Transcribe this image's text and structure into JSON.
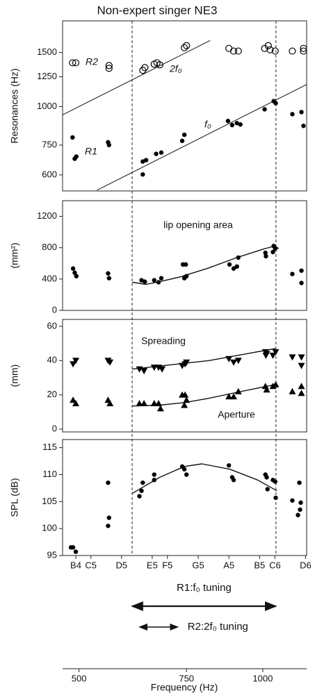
{
  "title": "Non-expert singer NE3",
  "xscale": "log",
  "xlim": [
    470,
    1180
  ],
  "xticks": [
    500,
    750,
    1000
  ],
  "xlabel": "Frequency (Hz)",
  "note_ticks": [
    {
      "value": 494,
      "label": "B4"
    },
    {
      "value": 523,
      "label": "C5"
    },
    {
      "value": 587,
      "label": "D5"
    },
    {
      "value": 659,
      "label": "E5"
    },
    {
      "value": 698,
      "label": "F5"
    },
    {
      "value": 784,
      "label": "G5"
    },
    {
      "value": 880,
      "label": "A5"
    },
    {
      "value": 988,
      "label": "B5"
    },
    {
      "value": 1047,
      "label": "C6"
    },
    {
      "value": 1175,
      "label": "D6"
    }
  ],
  "tuning_ranges": [
    {
      "label": "R1:f₀ tuning",
      "x": [
        611,
        1051
      ]
    },
    {
      "label": "R2:2f₀ tuning",
      "x": [
        628,
        726
      ]
    }
  ],
  "chart_data": [
    {
      "type": "scatter",
      "ylabel": "Resonances (Hz)",
      "yscale": "log",
      "ylim": [
        532,
        1900
      ],
      "yticks": [
        600,
        750,
        1000,
        1250,
        1500
      ],
      "annotations": [
        "R2",
        "2f₀",
        "f₀",
        "R1"
      ],
      "reference_lines": [
        {
          "x": [
            470,
            820
          ],
          "y": [
            940,
            1640
          ]
        },
        {
          "x": [
            535,
            1180
          ],
          "y": [
            535,
            1180
          ]
        }
      ],
      "series": [
        {
          "marker": "open-circle",
          "color": "#000000",
          "x": [
            488,
            494,
            560,
            560,
            636,
            641,
            664,
            671,
            678,
            744,
            750,
            880,
            896,
            912,
            1007,
            1021,
            1028,
            1048,
            1118,
            1166,
            1166
          ],
          "y": [
            1388,
            1388,
            1360,
            1332,
            1312,
            1339,
            1374,
            1388,
            1367,
            1554,
            1578,
            1546,
            1515,
            1515,
            1546,
            1578,
            1530,
            1515,
            1515,
            1515,
            1546
          ]
        },
        {
          "marker": "circle",
          "color": "#000000",
          "x": [
            488,
            492,
            495,
            558,
            560,
            636,
            644,
            636,
            669,
            682,
            738,
            744,
            877,
            891,
            907,
            919,
            1007,
            1042,
            1050,
            1118,
            1157,
            1166
          ],
          "y": [
            794,
            677,
            688,
            766,
            750,
            663,
            670,
            602,
            702,
            709,
            774,
            810,
            898,
            871,
            884,
            875,
            980,
            1042,
            1026,
            945,
            960,
            866
          ]
        }
      ]
    },
    {
      "type": "scatter",
      "ylabel": "(mm²)",
      "yscale": "linear",
      "ylim": [
        0,
        1400
      ],
      "yticks": [
        0,
        400,
        800,
        1200
      ],
      "annotations": [
        "lip opening area"
      ],
      "fits": [
        {
          "x": [
            611,
            644,
            678,
            734,
            816,
            907,
            1007,
            1048,
            1062
          ],
          "y": [
            359,
            332,
            367,
            429,
            542,
            674,
            787,
            822,
            787
          ]
        }
      ],
      "series": [
        {
          "marker": "circle",
          "color": "#000000",
          "x": [
            489,
            492,
            495,
            558,
            560,
            633,
            641,
            664,
            675,
            682,
            740,
            748,
            750,
            744,
            882,
            896,
            907,
            912,
            1010,
            1012,
            1042,
            1048,
            1039,
            1118,
            1157,
            1157
          ],
          "y": [
            534,
            481,
            437,
            472,
            411,
            385,
            367,
            385,
            359,
            411,
            586,
            586,
            437,
            411,
            586,
            534,
            560,
            674,
            735,
            691,
            822,
            787,
            744,
            464,
            507,
            350
          ]
        }
      ]
    },
    {
      "type": "scatter",
      "ylabel": "(mm)",
      "yscale": "linear",
      "ylim": [
        -1.6,
        64
      ],
      "yticks": [
        0,
        20,
        40,
        60
      ],
      "annotations": [
        "Spreading",
        "Aperture"
      ],
      "fits": [
        {
          "x": [
            611,
            816,
            1048
          ],
          "y": [
            35,
            40,
            47
          ]
        },
        {
          "x": [
            611,
            678,
            744,
            816,
            907,
            1048
          ],
          "y": [
            13.5,
            14,
            15.5,
            18,
            21.5,
            26
          ]
        }
      ],
      "series": [
        {
          "marker": "triangle-down",
          "color": "#000000",
          "x": [
            489,
            494,
            558,
            562,
            628,
            639,
            664,
            675,
            684,
            738,
            746,
            750,
            880,
            896,
            912,
            1010,
            1012,
            1015,
            1039,
            1050,
            1118,
            1157,
            1157
          ],
          "y": [
            38,
            40,
            40,
            39,
            35,
            34,
            36,
            36,
            35,
            37,
            38,
            39,
            41,
            39,
            40,
            45,
            43,
            44,
            43,
            45,
            42,
            42,
            37
          ]
        },
        {
          "marker": "triangle-up",
          "color": "#000000",
          "x": [
            489,
            494,
            558,
            562,
            628,
            639,
            664,
            675,
            680,
            738,
            746,
            744,
            750,
            880,
            896,
            912,
            1010,
            1015,
            1039,
            1050,
            1118,
            1157,
            1157
          ],
          "y": [
            17,
            15,
            17,
            15,
            15,
            15,
            15,
            15,
            12,
            20,
            20,
            14,
            17,
            19,
            19,
            22,
            25,
            23,
            25,
            26,
            22,
            25,
            21
          ]
        }
      ]
    },
    {
      "type": "scatter",
      "ylabel": "SPL (dB)",
      "yscale": "linear",
      "ylim": [
        95,
        116.5
      ],
      "yticks": [
        95,
        100,
        105,
        110,
        115
      ],
      "fits": [
        {
          "x": [
            611,
            678,
            744,
            795,
            883,
            981,
            1055
          ],
          "y": [
            106.5,
            109.5,
            111.5,
            112,
            111,
            109,
            107
          ]
        }
      ],
      "series": [
        {
          "marker": "circle",
          "color": "#000000",
          "x": [
            485,
            489,
            494,
            558,
            558,
            560,
            628,
            633,
            636,
            664,
            664,
            738,
            744,
            750,
            880,
            891,
            896,
            1010,
            1015,
            1018,
            1039,
            1048,
            1050,
            1118,
            1148,
            1154,
            1151,
            1142
          ],
          "y": [
            96.5,
            96.5,
            95.7,
            108.5,
            100.5,
            102,
            106,
            107,
            108.5,
            110,
            109,
            111.5,
            111,
            110,
            111.7,
            109.5,
            109,
            110,
            109.5,
            107.3,
            109,
            108.7,
            105.7,
            105.2,
            108.5,
            104.8,
            103.5,
            102.5
          ]
        }
      ]
    }
  ]
}
